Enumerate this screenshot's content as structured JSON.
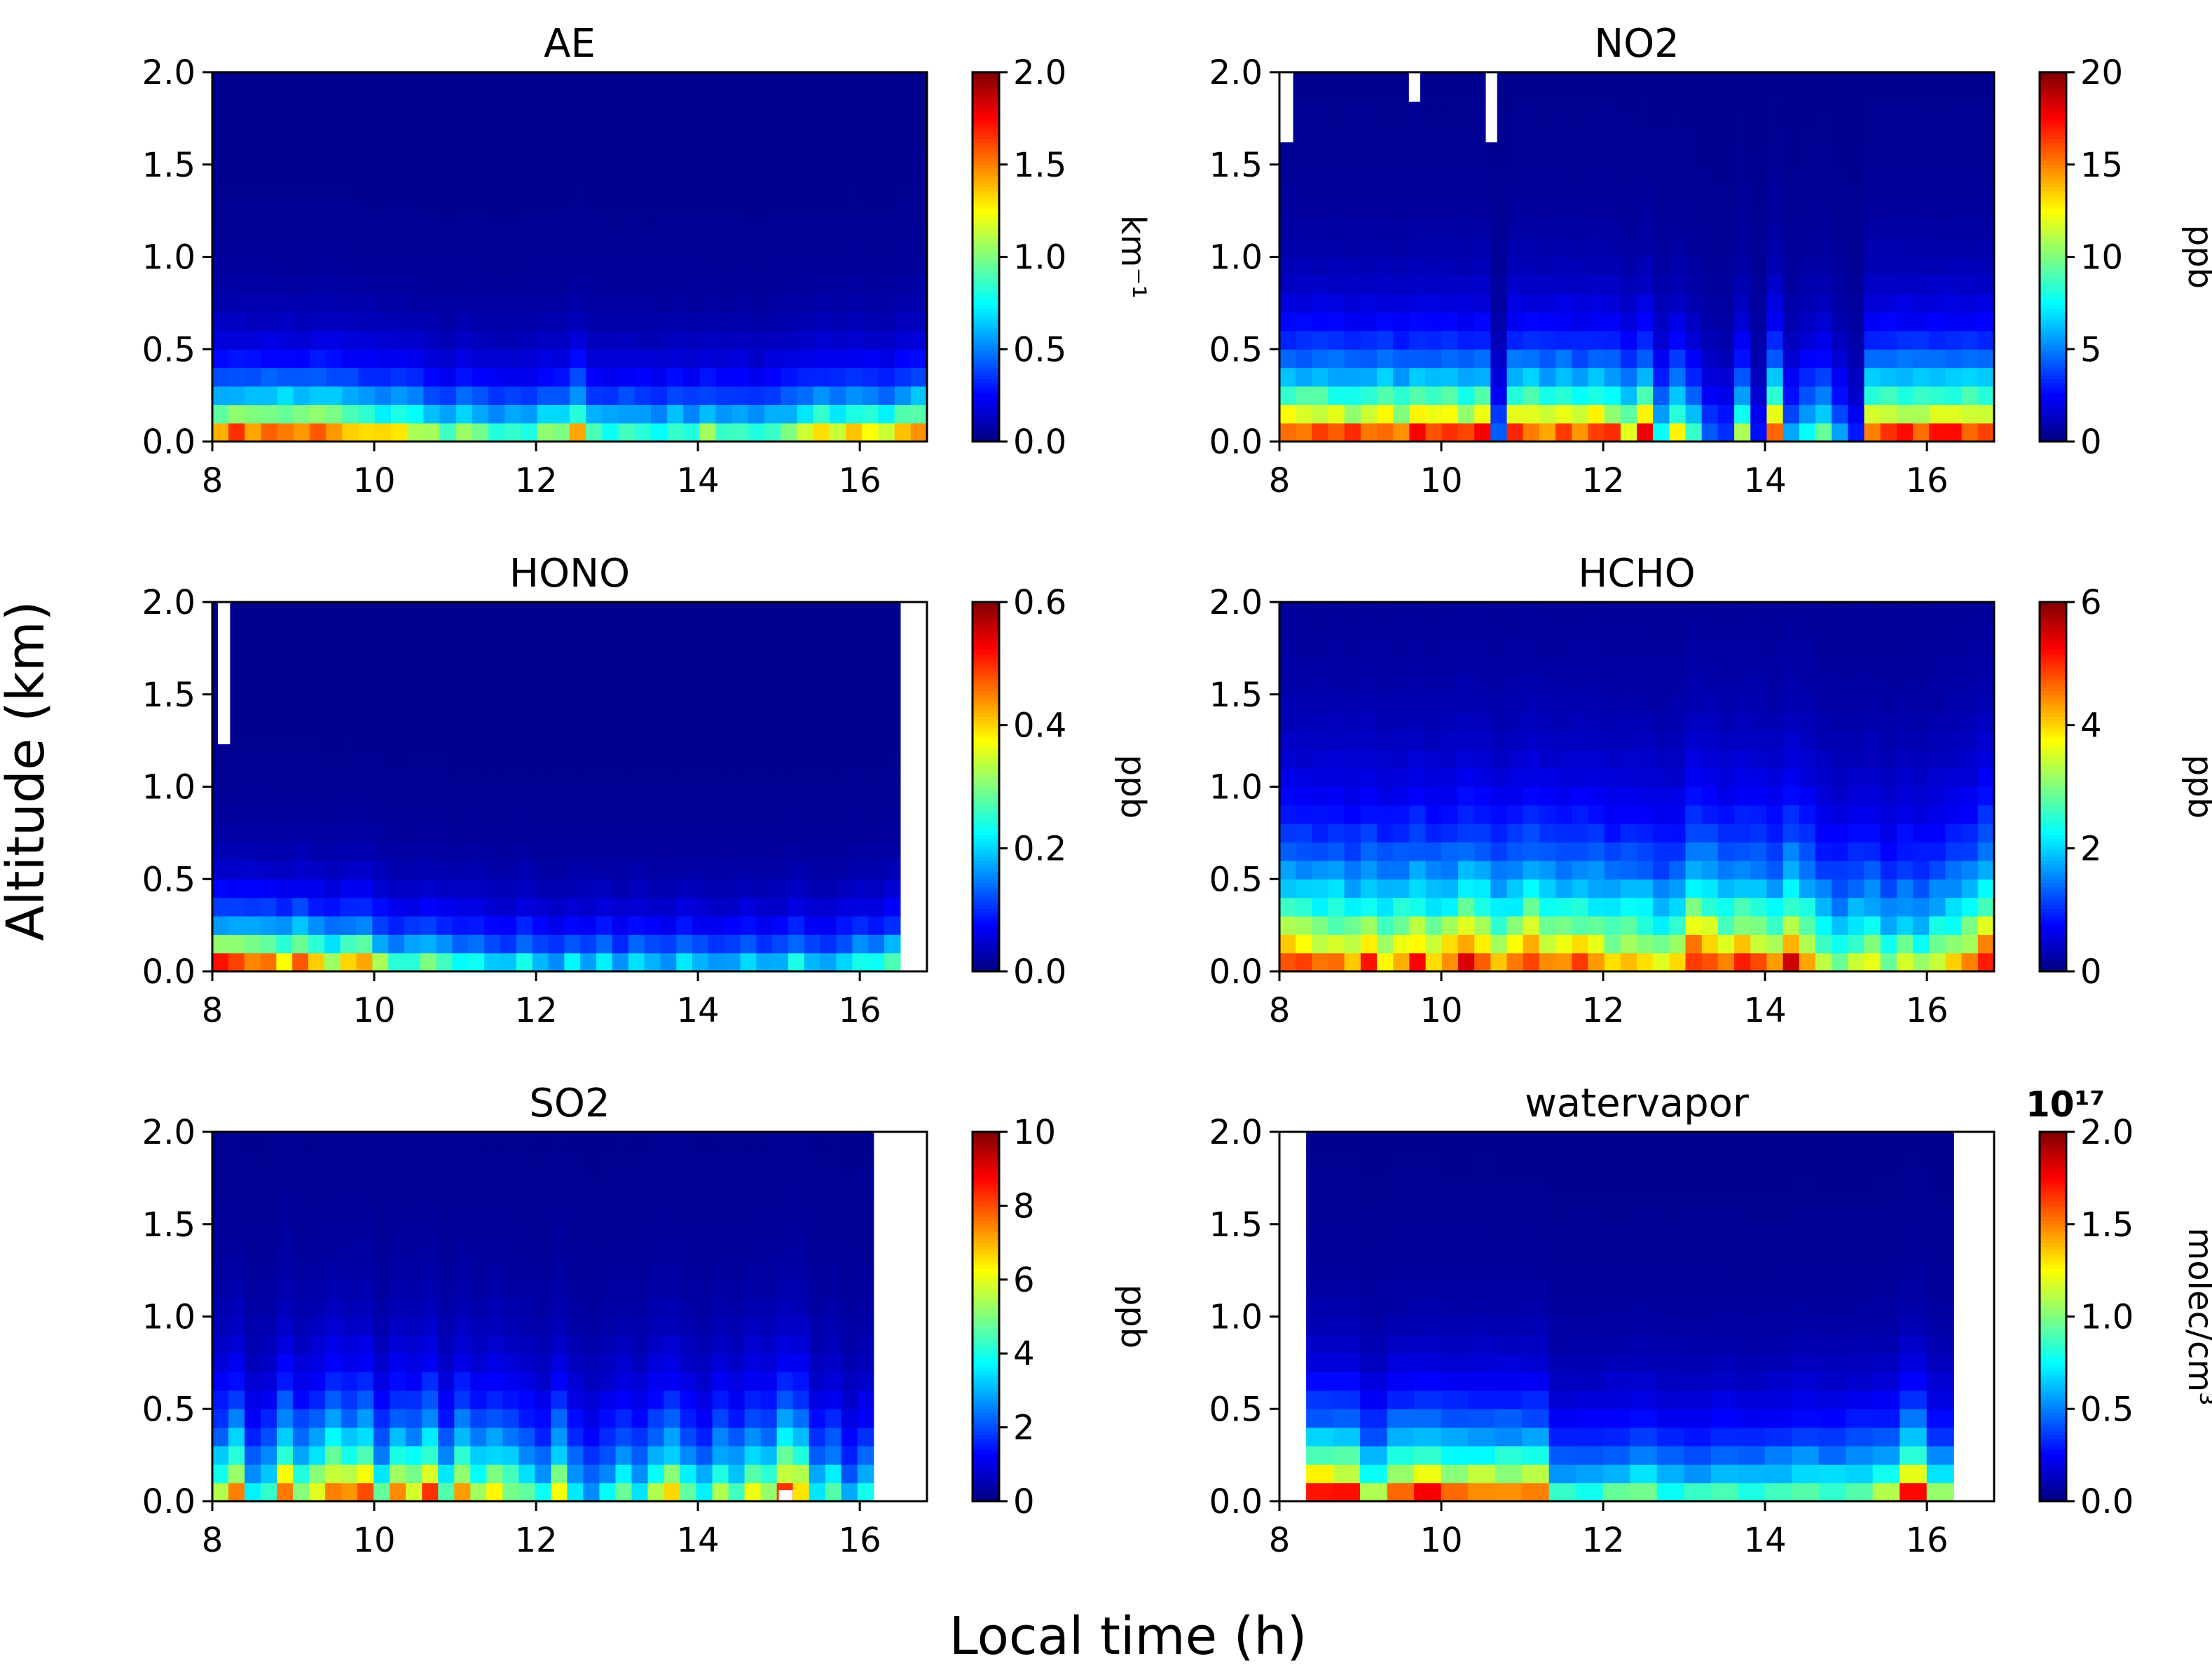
{
  "figure": {
    "ylabel": "Altitude (km)",
    "xlabel": "Local time (h)"
  },
  "chart_data": [
    {
      "type": "heatmap",
      "title": "AE",
      "colorbar_label": "km⁻¹",
      "colorbar_ticks": [
        "0.0",
        "0.5",
        "1.0",
        "1.5",
        "2.0"
      ],
      "vmin": 0,
      "vmax": 2.0,
      "x_ticks": [
        8,
        10,
        12,
        14,
        16
      ],
      "y_ticks": [
        "0.0",
        "0.5",
        "1.0",
        "1.5",
        "2.0"
      ],
      "xlim": [
        8,
        16.83
      ],
      "ylim": [
        0,
        2.0
      ],
      "time_range": [
        8.0,
        16.83
      ],
      "n_columns": 44,
      "surface_values": [
        1.9,
        1.9,
        1.9,
        1.9,
        1.9,
        1.8,
        1.9,
        1.9,
        1.7,
        1.6,
        1.5,
        1.5,
        1.4,
        1.2,
        1.0,
        1.3,
        1.1,
        1.0,
        1.0,
        1.0,
        1.2,
        1.2,
        1.7,
        1.1,
        1.0,
        1.1,
        1.0,
        1.0,
        1.1,
        1.0,
        1.2,
        1.0,
        1.1,
        1.0,
        1.1,
        1.2,
        1.3,
        1.5,
        1.4,
        1.6,
        1.5,
        1.3,
        1.7,
        1.9
      ],
      "scale_heights": [
        0.22
      ],
      "missing": []
    },
    {
      "type": "heatmap",
      "title": "NO2",
      "colorbar_label": "ppb",
      "colorbar_ticks": [
        "0",
        "5",
        "10",
        "15",
        "20"
      ],
      "vmin": 0,
      "vmax": 20,
      "x_ticks": [
        8,
        10,
        12,
        14,
        16
      ],
      "y_ticks": [
        "0.0",
        "0.5",
        "1.0",
        "1.5",
        "2.0"
      ],
      "xlim": [
        8,
        16.83
      ],
      "ylim": [
        0,
        2.0
      ],
      "time_range": [
        8.0,
        16.83
      ],
      "n_columns": 44,
      "surface_values": [
        19,
        19,
        19,
        19,
        18,
        19,
        19,
        17,
        19,
        19,
        19,
        18,
        19,
        5,
        19,
        19,
        18,
        19,
        17,
        19,
        18,
        14,
        19,
        9,
        14,
        9,
        5,
        4,
        12,
        3,
        19,
        6,
        9,
        11,
        6,
        3,
        19,
        19,
        19,
        19,
        19,
        19,
        19,
        19
      ],
      "scale_heights": [
        0.3
      ],
      "missing": [
        [
          8.0,
          8.17,
          1.62,
          2.0
        ],
        [
          9.6,
          9.74,
          1.84,
          2.0
        ],
        [
          10.55,
          10.69,
          1.62,
          2.0
        ]
      ]
    },
    {
      "type": "heatmap",
      "title": "HONO",
      "colorbar_label": "ppb",
      "colorbar_ticks": [
        "0.0",
        "0.2",
        "0.4",
        "0.6"
      ],
      "vmin": 0,
      "vmax": 0.6,
      "x_ticks": [
        8,
        10,
        12,
        14,
        16
      ],
      "y_ticks": [
        "0.0",
        "0.5",
        "1.0",
        "1.5",
        "2.0"
      ],
      "xlim": [
        8,
        16.83
      ],
      "ylim": [
        0,
        2.0
      ],
      "time_range": [
        8.0,
        16.5
      ],
      "n_columns": 43,
      "surface_values": [
        0.6,
        0.6,
        0.58,
        0.55,
        0.5,
        0.6,
        0.5,
        0.42,
        0.5,
        0.55,
        0.38,
        0.3,
        0.32,
        0.35,
        0.3,
        0.28,
        0.3,
        0.25,
        0.22,
        0.28,
        0.22,
        0.2,
        0.25,
        0.22,
        0.25,
        0.2,
        0.25,
        0.22,
        0.2,
        0.25,
        0.22,
        0.2,
        0.22,
        0.25,
        0.2,
        0.22,
        0.28,
        0.22,
        0.2,
        0.25,
        0.3,
        0.28,
        0.35
      ],
      "scale_heights": [
        0.2
      ],
      "missing": [
        [
          8.07,
          8.22,
          1.23,
          2.0
        ]
      ]
    },
    {
      "type": "heatmap",
      "title": "HCHO",
      "colorbar_label": "ppb",
      "colorbar_ticks": [
        "0",
        "2",
        "4",
        "6"
      ],
      "vmin": 0,
      "vmax": 6,
      "x_ticks": [
        8,
        10,
        12,
        14,
        16
      ],
      "y_ticks": [
        "0.0",
        "0.5",
        "1.0",
        "1.5",
        "2.0"
      ],
      "xlim": [
        8,
        16.83
      ],
      "ylim": [
        0,
        2.0
      ],
      "time_range": [
        8.0,
        16.83
      ],
      "n_columns": 44,
      "surface_values": [
        5.2,
        5.0,
        4.8,
        5.0,
        4.6,
        5.2,
        4.5,
        4.8,
        5.4,
        4.6,
        5.0,
        5.6,
        5.2,
        4.4,
        4.8,
        5.6,
        5.0,
        4.6,
        5.0,
        4.8,
        4.2,
        4.6,
        4.4,
        3.8,
        4.0,
        5.8,
        5.6,
        4.6,
        5.2,
        5.0,
        4.4,
        5.8,
        4.8,
        3.6,
        3.2,
        3.6,
        3.8,
        3.0,
        3.6,
        3.2,
        3.8,
        4.2,
        4.6,
        5.8
      ],
      "scale_heights": [
        0.45
      ],
      "missing": []
    },
    {
      "type": "heatmap",
      "title": "SO2",
      "colorbar_label": "ppb",
      "colorbar_ticks": [
        "0",
        "2",
        "4",
        "6",
        "8",
        "10"
      ],
      "vmin": 0,
      "vmax": 10,
      "x_ticks": [
        8,
        10,
        12,
        14,
        16
      ],
      "y_ticks": [
        "0.0",
        "0.5",
        "1.0",
        "1.5",
        "2.0"
      ],
      "xlim": [
        8,
        16.83
      ],
      "ylim": [
        0,
        2.0
      ],
      "time_range": [
        8.0,
        16.17
      ],
      "n_columns": 41,
      "surface_values": [
        6,
        8,
        4,
        5,
        9,
        6,
        7,
        9,
        8,
        9,
        5,
        8,
        7,
        9,
        5,
        8,
        6,
        7,
        6,
        5,
        4,
        7,
        4,
        3,
        4,
        5,
        4,
        6,
        7,
        5,
        4,
        6,
        5,
        7,
        6,
        9,
        8,
        4,
        5,
        3,
        4
      ],
      "scale_heights": [
        0.35
      ],
      "missing": [
        [
          15.0,
          15.17,
          0.0,
          0.06
        ]
      ]
    },
    {
      "type": "heatmap",
      "title": "watervapor",
      "colorbar_label": "molec/cm³",
      "colorbar_multiplier": "10¹⁷",
      "colorbar_ticks": [
        "0.0",
        "0.5",
        "1.0",
        "1.5",
        "2.0"
      ],
      "vmin": 0,
      "vmax": 2.0,
      "x_ticks": [
        8,
        10,
        12,
        14,
        16
      ],
      "y_ticks": [
        "0.0",
        "0.5",
        "1.0",
        "1.5",
        "2.0"
      ],
      "xlim": [
        8,
        16.83
      ],
      "ylim": [
        0,
        2.0
      ],
      "time_range": [
        8.33,
        16.33
      ],
      "n_columns": 24,
      "surface_values": [
        1.9,
        1.9,
        1.3,
        1.8,
        1.9,
        1.7,
        1.8,
        1.7,
        1.7,
        0.9,
        0.9,
        1.0,
        1.1,
        0.9,
        0.9,
        1.0,
        0.9,
        1.0,
        1.1,
        1.0,
        1.1,
        1.2,
        1.9,
        1.1
      ],
      "scale_heights": [
        0.3
      ],
      "missing": []
    }
  ]
}
